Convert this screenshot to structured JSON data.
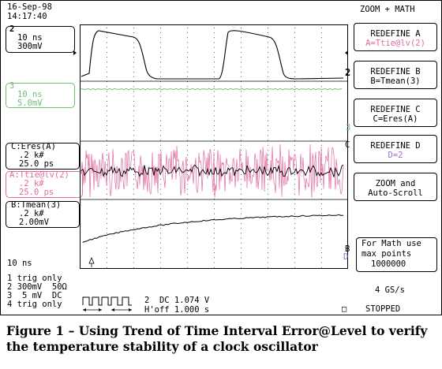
{
  "header": {
    "date": "16-Sep-98",
    "time": "14:17:40",
    "mode": "ZOOM + MATH"
  },
  "channels": {
    "ch2": {
      "label": "2",
      "timebase": "10 ns",
      "volts": "300mV"
    },
    "ch3": {
      "label": "3",
      "timebase": "10 ns",
      "volts": "5.0mV"
    },
    "c": {
      "line1": "C:Eres(A)",
      "line2": ".2 k#",
      "line3": "25.0 ps"
    },
    "a": {
      "line1": "A:Ttie@lv(2)",
      "line2": ".2 k#",
      "line3": "25.0 ps"
    },
    "b": {
      "line1": "B:Tmean(3)",
      "line2": ".2 k#",
      "line3": "2.00mV"
    }
  },
  "menu": [
    {
      "top": "REDEFINE A",
      "bottom": "A=Ttie@lv(2)"
    },
    {
      "top": "REDEFINE B",
      "bottom": "B=Tmean(3)"
    },
    {
      "top": "REDEFINE C",
      "bottom": "C=Eres(A)"
    },
    {
      "top": "REDEFINE D",
      "bottom": "D=2"
    },
    {
      "top": "ZOOM and",
      "bottom": "Auto-Scroll"
    }
  ],
  "math_note": {
    "line1": "For Math use",
    "line2": "max points",
    "line3": "1000000"
  },
  "markers": {
    "right_2": "2",
    "right_3": "3",
    "right_c": "C",
    "right_b": "B",
    "right_d": "D"
  },
  "status": {
    "timebase": "10 ns",
    "trig1": "1 trig only",
    "trig2": "2 300mV  50Ω",
    "trig3": "3  5 mV  DC",
    "trig4": "4 trig only",
    "trig_info1": "2  DC 1.074 V",
    "trig_info2": "H'off 1.000 s",
    "sample_rate": "4 GS/s",
    "state": "STOPPED"
  },
  "colors": {
    "pink": "#e06aa0",
    "green": "#6fbf6f",
    "black": "#000000"
  },
  "caption": "Figure 1 – Using Trend of Time Interval Error@Level to verify the temperature stability of a clock oscillator"
}
